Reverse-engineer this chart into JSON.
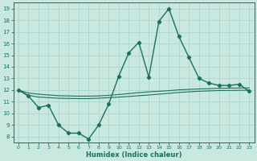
{
  "xlabel": "Humidex (Indice chaleur)",
  "background_color": "#c8e8e0",
  "grid_color": "#b0d8d0",
  "line_color": "#1a7060",
  "x_hours": [
    0,
    1,
    2,
    3,
    4,
    5,
    6,
    7,
    8,
    9,
    10,
    11,
    12,
    13,
    14,
    15,
    16,
    17,
    18,
    19,
    20,
    21,
    22,
    23
  ],
  "humidex_values": [
    12.0,
    11.5,
    10.5,
    10.7,
    9.0,
    8.3,
    8.3,
    7.8,
    9.0,
    10.8,
    13.2,
    15.2,
    16.1,
    13.1,
    17.9,
    19.0,
    16.6,
    14.8,
    13.0,
    12.6,
    12.4,
    12.4,
    12.5,
    11.9
  ],
  "ref_line1": [
    12.0,
    11.55,
    11.4,
    11.35,
    11.3,
    11.28,
    11.27,
    11.27,
    11.3,
    11.35,
    11.4,
    11.45,
    11.52,
    11.58,
    11.65,
    11.72,
    11.8,
    11.85,
    11.9,
    11.93,
    11.96,
    11.97,
    11.98,
    11.99
  ],
  "ref_line2": [
    12.0,
    11.75,
    11.65,
    11.58,
    11.52,
    11.5,
    11.48,
    11.48,
    11.5,
    11.55,
    11.62,
    11.7,
    11.78,
    11.85,
    11.9,
    11.95,
    12.02,
    12.06,
    12.1,
    12.12,
    12.15,
    12.17,
    12.18,
    12.19
  ],
  "ylim": [
    7.5,
    19.5
  ],
  "xlim": [
    -0.5,
    23.5
  ],
  "yticks": [
    8,
    9,
    10,
    11,
    12,
    13,
    14,
    15,
    16,
    17,
    18,
    19
  ],
  "xticks": [
    0,
    1,
    2,
    3,
    4,
    5,
    6,
    7,
    8,
    9,
    10,
    11,
    12,
    13,
    14,
    15,
    16,
    17,
    18,
    19,
    20,
    21,
    22,
    23
  ]
}
